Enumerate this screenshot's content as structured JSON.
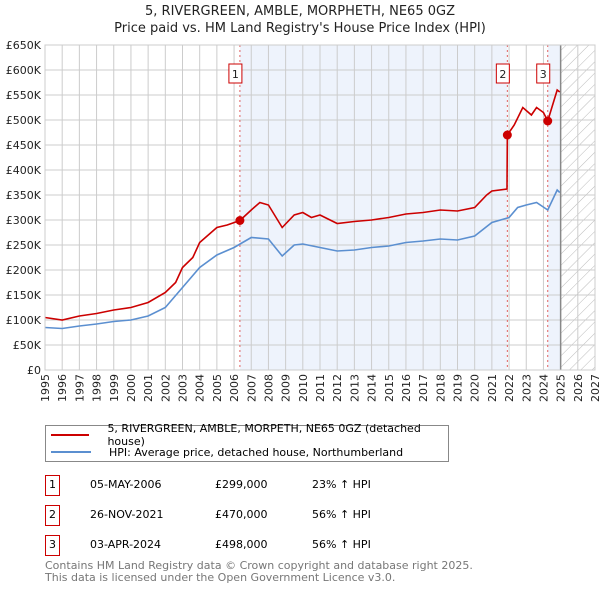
{
  "chart_data": {
    "type": "line",
    "title": "5, RIVERGREEN, AMBLE, MORPHETH, NE65 0GZ",
    "subtitle": "Price paid vs. HM Land Registry's House Price Index (HPI)",
    "xlim": [
      1995,
      2027
    ],
    "ylim": [
      0,
      650000
    ],
    "x_ticks": [
      "1995",
      "1996",
      "1997",
      "1998",
      "1999",
      "2000",
      "2001",
      "2002",
      "2003",
      "2004",
      "2005",
      "2006",
      "2007",
      "2008",
      "2009",
      "2010",
      "2011",
      "2012",
      "2013",
      "2014",
      "2015",
      "2016",
      "2017",
      "2018",
      "2019",
      "2020",
      "2021",
      "2022",
      "2023",
      "2024",
      "2025",
      "2026",
      "2027"
    ],
    "y_ticks": [
      "£0",
      "£50K",
      "£100K",
      "£150K",
      "£200K",
      "£250K",
      "£300K",
      "£350K",
      "£400K",
      "£450K",
      "£500K",
      "£550K",
      "£600K",
      "£650K"
    ],
    "series": [
      {
        "name": "5, RIVERGREEN, AMBLE, MORPETH, NE65 0GZ (detached house)",
        "color": "#cc0000",
        "points": [
          [
            1995,
            105
          ],
          [
            1996,
            100
          ],
          [
            1997,
            108
          ],
          [
            1998,
            113
          ],
          [
            1999,
            120
          ],
          [
            2000,
            125
          ],
          [
            2001,
            135
          ],
          [
            2002,
            155
          ],
          [
            2002.6,
            175
          ],
          [
            2003,
            205
          ],
          [
            2003.6,
            225
          ],
          [
            2004,
            255
          ],
          [
            2005,
            285
          ],
          [
            2005.6,
            290
          ],
          [
            2006.34,
            299
          ],
          [
            2007,
            320
          ],
          [
            2007.5,
            335
          ],
          [
            2008,
            330
          ],
          [
            2008.8,
            285
          ],
          [
            2009.5,
            310
          ],
          [
            2010,
            315
          ],
          [
            2010.5,
            305
          ],
          [
            2011,
            310
          ],
          [
            2012,
            293
          ],
          [
            2013,
            297
          ],
          [
            2014,
            300
          ],
          [
            2015,
            305
          ],
          [
            2016,
            312
          ],
          [
            2017,
            315
          ],
          [
            2018,
            320
          ],
          [
            2019,
            318
          ],
          [
            2020,
            325
          ],
          [
            2020.7,
            350
          ],
          [
            2021,
            358
          ],
          [
            2021.88,
            362
          ],
          [
            2021.9,
            470
          ],
          [
            2022.3,
            490
          ],
          [
            2022.8,
            525
          ],
          [
            2023.3,
            510
          ],
          [
            2023.6,
            525
          ],
          [
            2024,
            515
          ],
          [
            2024.25,
            498
          ],
          [
            2024.8,
            560
          ],
          [
            2024.95,
            556
          ]
        ]
      },
      {
        "name": "HPI: Average price, detached house, Northumberland",
        "color": "#5b8fd0",
        "points": [
          [
            1995,
            85
          ],
          [
            1996,
            83
          ],
          [
            1997,
            88
          ],
          [
            1998,
            92
          ],
          [
            1999,
            97
          ],
          [
            2000,
            100
          ],
          [
            2001,
            108
          ],
          [
            2002,
            125
          ],
          [
            2003,
            165
          ],
          [
            2004,
            205
          ],
          [
            2005,
            230
          ],
          [
            2006,
            245
          ],
          [
            2007,
            265
          ],
          [
            2008,
            262
          ],
          [
            2008.8,
            228
          ],
          [
            2009.5,
            250
          ],
          [
            2010,
            252
          ],
          [
            2011,
            245
          ],
          [
            2012,
            238
          ],
          [
            2013,
            240
          ],
          [
            2014,
            245
          ],
          [
            2015,
            248
          ],
          [
            2016,
            255
          ],
          [
            2017,
            258
          ],
          [
            2018,
            262
          ],
          [
            2019,
            260
          ],
          [
            2020,
            268
          ],
          [
            2021,
            295
          ],
          [
            2022,
            305
          ],
          [
            2022.5,
            325
          ],
          [
            2023,
            330
          ],
          [
            2023.6,
            335
          ],
          [
            2024.25,
            320
          ],
          [
            2024.8,
            360
          ],
          [
            2024.95,
            355
          ]
        ]
      }
    ],
    "sales": [
      {
        "label": "1",
        "x": 2006.34,
        "value": 299
      },
      {
        "label": "2",
        "x": 2021.9,
        "value": 470
      },
      {
        "label": "3",
        "x": 2024.25,
        "value": 498
      }
    ],
    "value_units": "thousands GBP"
  },
  "legend": {
    "red": "5, RIVERGREEN, AMBLE, MORPETH, NE65 0GZ (detached house)",
    "blue": "HPI: Average price, detached house, Northumberland"
  },
  "table": [
    {
      "num": "1",
      "date": "05-MAY-2006",
      "price": "£299,000",
      "hpi": "23% ↑ HPI"
    },
    {
      "num": "2",
      "date": "26-NOV-2021",
      "price": "£470,000",
      "hpi": "56% ↑ HPI"
    },
    {
      "num": "3",
      "date": "03-APR-2024",
      "price": "£498,000",
      "hpi": "56% ↑ HPI"
    }
  ],
  "footer": {
    "line1": "Contains HM Land Registry data © Crown copyright and database right 2025.",
    "line2": "This data is licensed under the Open Government Licence v3.0."
  }
}
